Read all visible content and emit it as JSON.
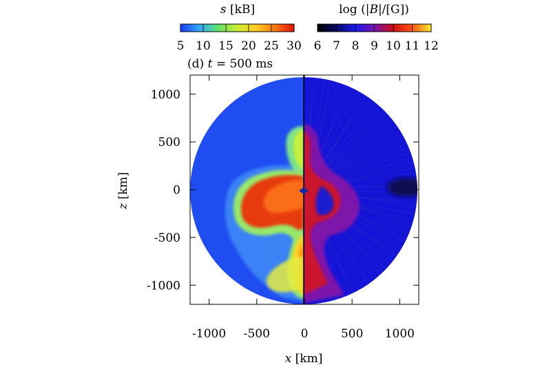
{
  "chart_data": {
    "type": "heatmap",
    "panel_label": "(d) t = 500 ms",
    "panel_label_prefix": "(d) ",
    "panel_label_var": "t",
    "panel_label_value": "= 500 ms",
    "xlabel": "x [km]",
    "xlabel_var": "x",
    "xlabel_unit": "[km]",
    "ylabel": "z [km]",
    "ylabel_var": "z",
    "ylabel_unit": "[km]",
    "xlim": [
      -1200,
      1200
    ],
    "ylim": [
      -1200,
      1200
    ],
    "x_ticks": [
      -1000,
      -500,
      0,
      500,
      1000
    ],
    "y_ticks": [
      1000,
      500,
      0,
      -500,
      -1000
    ],
    "x_tick_labels": [
      "-1000",
      "-500",
      "0",
      "500",
      "1000"
    ],
    "y_tick_labels": [
      "1000",
      "500",
      "0",
      "-500",
      "-1000"
    ],
    "domain_radius_km": 1200,
    "grid": false,
    "colorbars": [
      {
        "title": "s [kB]",
        "title_var": "s",
        "title_unit": "[kB]",
        "range": [
          5,
          30
        ],
        "ticks": [
          5,
          10,
          15,
          20,
          25,
          30
        ],
        "tick_labels": [
          "5",
          "10",
          "15",
          "20",
          "25",
          "30"
        ],
        "colormap": "jet",
        "colors": [
          "#1a3cff",
          "#33aaff",
          "#5fe36a",
          "#ccee33",
          "#ffcc22",
          "#ff7711",
          "#dd1100"
        ]
      },
      {
        "title": "log (|B|/[G])",
        "title_prefix": "log (|",
        "title_var": "B",
        "title_suffix": "|/[G])",
        "range": [
          6,
          12
        ],
        "ticks": [
          6,
          7,
          8,
          9,
          10,
          11,
          12
        ],
        "tick_labels": [
          "6",
          "7",
          "8",
          "9",
          "10",
          "11",
          "12"
        ],
        "colormap": "black-blue-red-yellow",
        "colors": [
          "#000000",
          "#0a0a66",
          "#1a1aee",
          "#7a11b0",
          "#cc1111",
          "#ff5511",
          "#ffee33"
        ]
      }
    ],
    "left_half": {
      "quantity": "entropy",
      "background_value": 5
    },
    "right_half": {
      "quantity": "log magnetic field",
      "background_value": 8
    }
  }
}
